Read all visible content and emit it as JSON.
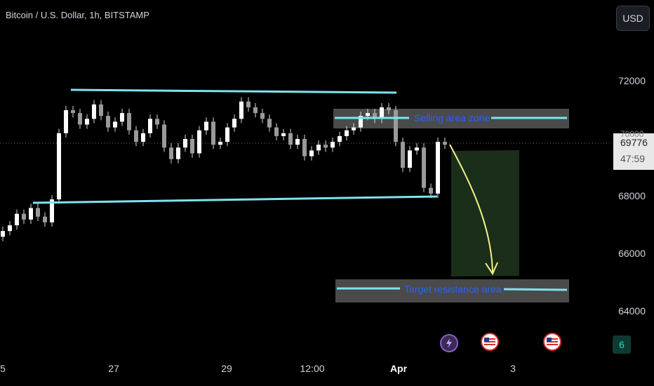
{
  "header": {
    "title": "Bitcoin / U.S. Dollar, 1h, BITSTAMP",
    "currency": "USD"
  },
  "price_tag": {
    "hidden_price": "70000",
    "price": "69776",
    "countdown": "47:59"
  },
  "annotations": {
    "selling_zone": "Selling area zone",
    "target_zone": "Target resistance area"
  },
  "badge_count": "6",
  "colors": {
    "background": "#000000",
    "candle": "#d8d8d8",
    "trendline": "#7de3f0",
    "zone": "#4a4a4a",
    "target_box": "#1f3a1f",
    "arrow": "#f5f08a",
    "label": "#2962ff"
  },
  "chart_data": {
    "type": "candlestick",
    "title": "Bitcoin / U.S. Dollar, 1h, BITSTAMP",
    "ylim": [
      63000,
      74000
    ],
    "yticks": [
      "72000",
      "70000",
      "68000",
      "66000",
      "64000"
    ],
    "xticks": [
      "5",
      "27",
      "29",
      "12:00",
      "Apr",
      "3"
    ],
    "last_price": 69776,
    "series": [
      {
        "name": "close",
        "values": [
          66800,
          67000,
          67400,
          67200,
          67600,
          67300,
          67100,
          67900,
          70200,
          71000,
          70900,
          70500,
          70700,
          71200,
          70800,
          70400,
          70600,
          70900,
          70300,
          69900,
          70200,
          70700,
          70500,
          69700,
          69300,
          69700,
          70000,
          69500,
          70300,
          70600,
          69800,
          69900,
          70400,
          70700,
          71300,
          71100,
          70900,
          70700,
          70400,
          70100,
          70200,
          69800,
          70000,
          69400,
          69600,
          69800,
          69700,
          69900,
          70100,
          70300,
          70400,
          70800,
          70900,
          70700,
          71100,
          71000,
          69900,
          69000,
          69600,
          69700,
          68300,
          68100,
          69900,
          69800
        ]
      }
    ],
    "lines": [
      {
        "label": "upper trendline",
        "points": [
          [
            0,
            71700
          ],
          [
            29,
            71600
          ]
        ]
      },
      {
        "label": "lower support",
        "points": [
          [
            0,
            67800
          ],
          [
            34,
            68000
          ]
        ]
      }
    ],
    "zones": [
      {
        "label": "Selling area zone",
        "range": [
          70400,
          71100
        ]
      },
      {
        "label": "Target resistance area",
        "range": [
          64300,
          65100
        ]
      }
    ]
  }
}
